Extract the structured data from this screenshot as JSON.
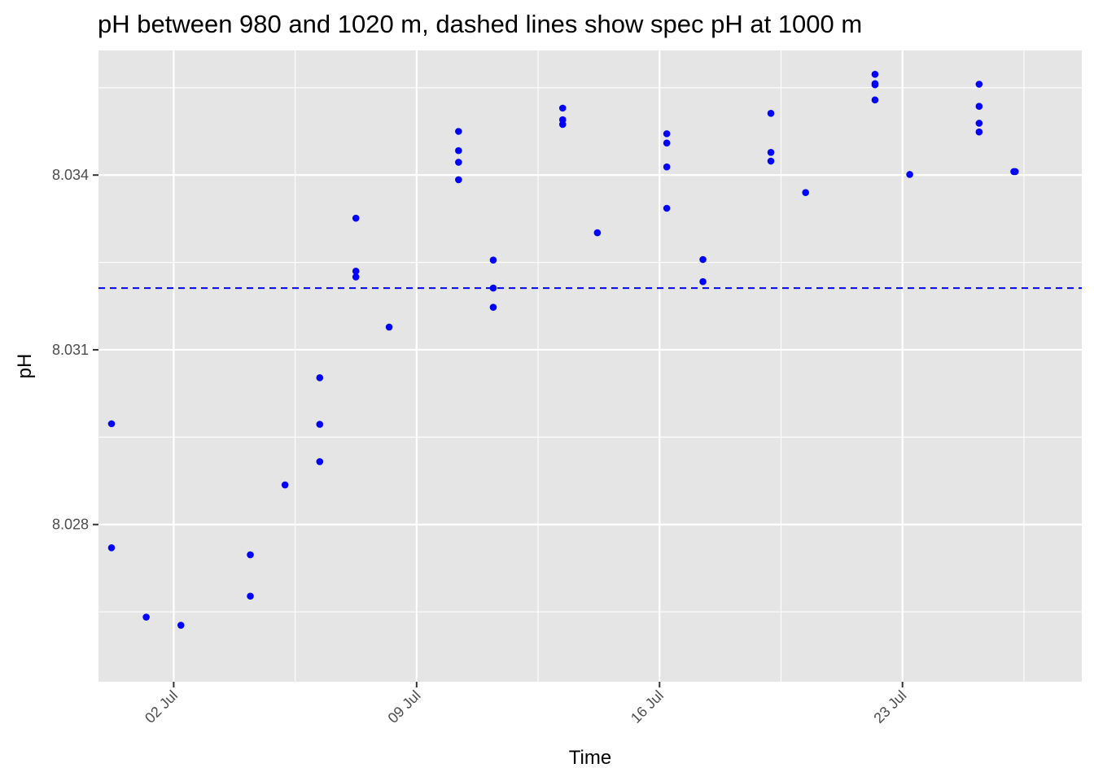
{
  "chart_data": {
    "type": "scatter",
    "title": "pH between 980 and 1020 m, dashed lines show spec pH at 1000 m",
    "xlabel": "Time",
    "ylabel": "pH",
    "x_tick_labels": [
      "02 Jul",
      "09 Jul",
      "16 Jul",
      "23 Jul"
    ],
    "y_tick_labels": [
      "8.028",
      "8.031",
      "8.034"
    ],
    "x_ticks": [
      "2018-07-02",
      "2018-07-09",
      "2018-07-16",
      "2018-07-23"
    ],
    "y_ticks": [
      8.028,
      8.031,
      8.034
    ],
    "xlim": [
      "2018-06-29 20:00",
      "2018-07-28 04:00"
    ],
    "ylim": [
      8.0253,
      8.03614
    ],
    "grid": true,
    "reference_line": {
      "y": 8.03206,
      "style": "dashed",
      "color": "#0000ff"
    },
    "point_color": "#0000ff",
    "series": [
      {
        "points": [
          [
            "2018-06-30 05:00",
            8.02973
          ],
          [
            "2018-06-30 05:00",
            8.0276
          ],
          [
            "2018-07-01 05:00",
            8.02641
          ],
          [
            "2018-07-02 05:00",
            8.02627
          ],
          [
            "2018-07-04 05:00",
            8.02748
          ],
          [
            "2018-07-04 05:00",
            8.02677
          ],
          [
            "2018-07-05 05:00",
            8.02868
          ],
          [
            "2018-07-06 05:00",
            8.03052
          ],
          [
            "2018-07-06 05:00",
            8.02972
          ],
          [
            "2018-07-06 05:00",
            8.02908
          ],
          [
            "2018-07-07 06:00",
            8.03326
          ],
          [
            "2018-07-07 06:00",
            8.03235
          ],
          [
            "2018-07-07 06:00",
            8.03225
          ],
          [
            "2018-07-08 05:00",
            8.03139
          ],
          [
            "2018-07-10 05:00",
            8.03475
          ],
          [
            "2018-07-10 05:00",
            8.03442
          ],
          [
            "2018-07-10 05:00",
            8.03422
          ],
          [
            "2018-07-10 05:00",
            8.03392
          ],
          [
            "2018-07-11 05:00",
            8.03254
          ],
          [
            "2018-07-11 05:00",
            8.03206
          ],
          [
            "2018-07-11 05:00",
            8.03173
          ],
          [
            "2018-07-13 05:00",
            8.03515
          ],
          [
            "2018-07-13 05:00",
            8.03495
          ],
          [
            "2018-07-13 05:00",
            8.03487
          ],
          [
            "2018-07-14 05:00",
            8.03301
          ],
          [
            "2018-07-16 05:00",
            8.03471
          ],
          [
            "2018-07-16 05:00",
            8.03455
          ],
          [
            "2018-07-16 05:00",
            8.03414
          ],
          [
            "2018-07-16 05:00",
            8.03343
          ],
          [
            "2018-07-17 06:00",
            8.03255
          ],
          [
            "2018-07-17 06:00",
            8.03217
          ],
          [
            "2018-07-19 05:00",
            8.03506
          ],
          [
            "2018-07-19 05:00",
            8.03439
          ],
          [
            "2018-07-19 05:00",
            8.03424
          ],
          [
            "2018-07-20 05:00",
            8.0337
          ],
          [
            "2018-07-22 05:00",
            8.03555
          ],
          [
            "2018-07-22 05:00",
            8.03573
          ],
          [
            "2018-07-22 05:00",
            8.03557
          ],
          [
            "2018-07-22 05:00",
            8.03529
          ],
          [
            "2018-07-23 05:00",
            8.03401
          ],
          [
            "2018-07-25 05:00",
            8.03556
          ],
          [
            "2018-07-25 05:00",
            8.03518
          ],
          [
            "2018-07-25 05:00",
            8.03489
          ],
          [
            "2018-07-25 05:00",
            8.03474
          ],
          [
            "2018-07-26 05:00",
            8.03406
          ],
          [
            "2018-07-26 06:00",
            8.03406
          ]
        ]
      }
    ]
  }
}
